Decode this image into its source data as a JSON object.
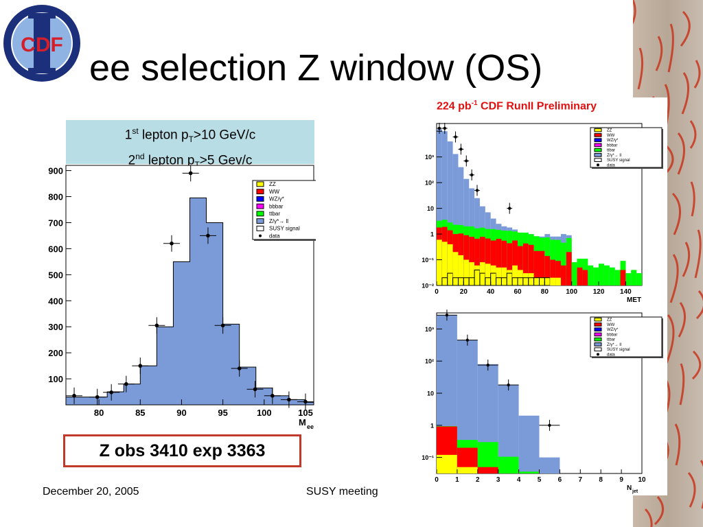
{
  "slide": {
    "title": "ee selection Z window (OS)",
    "footer_date": "December 20, 2005",
    "footer_meeting": "SUSY meeting",
    "logo_text": "CDF",
    "cut_line1_pre": "1",
    "cut_line1_sup": "st",
    "cut_line1_mid": " lepton p",
    "cut_line1_sub": "T",
    "cut_line1_post": ">10 GeV/c",
    "cut_line2_pre": "2",
    "cut_line2_sup": "nd",
    "cut_line2_mid": " lepton p",
    "cut_line2_sub": "T",
    "cut_line2_post": ">5 Gev/c",
    "result": "Z obs 3410 exp 3363",
    "prelim_pre": "224 pb",
    "prelim_sup": "-1",
    "prelim_post": " CDF RunII Preliminary"
  },
  "colors": {
    "zz": "#ffff00",
    "ww": "#ff0000",
    "wz": "#0000ff",
    "bbbar": "#ff00ff",
    "ttbar": "#00ff00",
    "dy": "#7b9bd8",
    "susy": "#ffffff",
    "data": "#000000",
    "result_border": "#c0392b",
    "cuts_box": "#b8dde5",
    "prelim": "#e01010"
  },
  "chart_data": [
    {
      "type": "bar",
      "xlabel": "M",
      "xlabel_sub": "ee",
      "xlim": [
        76,
        106
      ],
      "ylim": [
        0,
        920
      ],
      "yticks": [
        100,
        200,
        300,
        400,
        500,
        600,
        700,
        800,
        900
      ],
      "xticks": [
        80,
        85,
        90,
        95,
        100,
        105
      ],
      "legend": [
        "ZZ",
        "WW",
        "WZ/γ*",
        "bbbar",
        "ttbar",
        "Z/γ*→ ll",
        "SUSY signal",
        "data"
      ],
      "bin_edges": [
        76,
        79,
        81,
        83,
        85,
        87,
        89,
        91,
        93,
        95,
        97,
        99,
        101,
        103,
        105,
        106
      ],
      "dy_values": [
        30,
        30,
        50,
        80,
        150,
        300,
        550,
        795,
        700,
        310,
        145,
        65,
        35,
        20,
        10
      ],
      "data_x": [
        77,
        79.8,
        81.5,
        83.3,
        85,
        87,
        88.8,
        91.1,
        93.2,
        95,
        97,
        98.9,
        101,
        103,
        105
      ],
      "data_y": [
        35,
        30,
        48,
        80,
        150,
        305,
        620,
        890,
        650,
        305,
        140,
        60,
        35,
        20,
        12
      ]
    },
    {
      "type": "bar",
      "scale": "log",
      "xlabel": "MET",
      "xlim": [
        0,
        152
      ],
      "ylim_log10": [
        -3,
        3.3
      ],
      "xticks": [
        0,
        20,
        40,
        60,
        80,
        100,
        120,
        140
      ],
      "yticks": [
        "10⁻²",
        "10⁻¹",
        "1",
        "10",
        "10²",
        "10³"
      ],
      "legend": [
        "ZZ",
        "WW",
        "WZ/γ*",
        "bbbar",
        "ttbar",
        "Z/γ*→ ll",
        "SUSY signal",
        "data"
      ],
      "bin_width": 4,
      "dy_values": [
        1200,
        1000,
        400,
        130,
        40,
        14,
        6,
        2.5,
        1.2,
        0.7,
        0.4,
        0.25,
        0.2,
        0.18,
        0.15,
        0.1,
        0.09,
        0.1,
        0.08,
        0.08,
        0.1,
        0.08,
        0.08,
        0.1,
        0.09,
        0,
        0,
        0,
        0,
        0,
        0,
        0,
        0,
        0,
        0,
        0,
        0,
        0
      ],
      "ttbar_values": [
        0.15,
        0.17,
        0.14,
        0.13,
        0.12,
        0.11,
        0.12,
        0.1,
        0.1,
        0.09,
        0.1,
        0.08,
        0.08,
        0.09,
        0.07,
        0.08,
        0.07,
        0.06,
        0.06,
        0.05,
        0.06,
        0.05,
        0.05,
        0.04,
        0.05,
        0.008,
        0.006,
        0.007,
        0.006,
        0.005,
        0.007,
        0.006,
        0.005,
        0.004,
        0.005,
        0.003,
        0.004,
        0.003
      ],
      "ww_values": [
        0.12,
        0.14,
        0.1,
        0.08,
        0.09,
        0.08,
        0.07,
        0.06,
        0.07,
        0.06,
        0.05,
        0.06,
        0.05,
        0.04,
        0.05,
        0.03,
        0.04,
        0.035,
        0.02,
        0.02,
        0.012,
        0.008,
        0.007,
        0.006,
        0.02,
        0,
        0.005,
        0.004,
        0,
        0,
        0,
        0,
        0,
        0,
        0.004,
        0,
        0,
        0
      ],
      "zz_values": [
        0.06,
        0.05,
        0.04,
        0.02,
        0.015,
        0.01,
        0.008,
        0.006,
        0.008,
        0.007,
        0.006,
        0.005,
        0.005,
        0.004,
        0.006,
        0.004,
        0.003,
        0.003,
        0.002,
        0.002,
        0.002,
        0.002,
        0.002,
        0,
        0,
        0,
        0,
        0,
        0,
        0,
        0,
        0,
        0,
        0,
        0,
        0,
        0,
        0
      ],
      "susy_values": [
        0,
        0.002,
        0.003,
        0.002,
        0.002,
        0.002,
        0.002,
        0.004,
        0.003,
        0.002,
        0.003,
        0.002,
        0.002,
        0.003,
        0.002,
        0.002,
        0.002,
        0.002,
        0.002,
        0.002,
        0.002,
        0,
        0,
        0,
        0,
        0,
        0,
        0,
        0,
        0,
        0,
        0,
        0,
        0,
        0,
        0,
        0,
        0
      ],
      "data_x": [
        2,
        6,
        14,
        18,
        22,
        26,
        30,
        54
      ],
      "data_y": [
        1300,
        1300,
        600,
        200,
        70,
        20,
        5,
        1
      ]
    },
    {
      "type": "bar",
      "scale": "log",
      "xlabel": "N",
      "xlabel_sub": "jet",
      "xlim": [
        0,
        10
      ],
      "ylim_log10": [
        -1.5,
        3.5
      ],
      "xticks": [
        0,
        1,
        2,
        3,
        4,
        5,
        6,
        7,
        8,
        9,
        10
      ],
      "yticks": [
        "10⁻¹",
        "1",
        "10",
        "10²",
        "10³"
      ],
      "legend": [
        "ZZ",
        "WW",
        "WZ/γ*",
        "bbbar",
        "ttbar",
        "Z/γ*→ ll",
        "SUSY signal",
        "data"
      ],
      "dy_values": [
        2700,
        450,
        80,
        18,
        2,
        0.1,
        0,
        0,
        0,
        0
      ],
      "ttbar_values": [
        0.02,
        0.15,
        0.25,
        0.08,
        0.03,
        0,
        0,
        0,
        0,
        0
      ],
      "ww_values": [
        0.8,
        0.15,
        0.03,
        0.015,
        0,
        0,
        0,
        0,
        0,
        0
      ],
      "zz_values": [
        0.12,
        0.05,
        0.02,
        0.01,
        0.006,
        0,
        0,
        0,
        0,
        0
      ],
      "data_x": [
        0.5,
        1.5,
        2.5,
        3.5,
        5.5
      ],
      "data_y": [
        2700,
        450,
        75,
        18,
        1
      ]
    }
  ]
}
